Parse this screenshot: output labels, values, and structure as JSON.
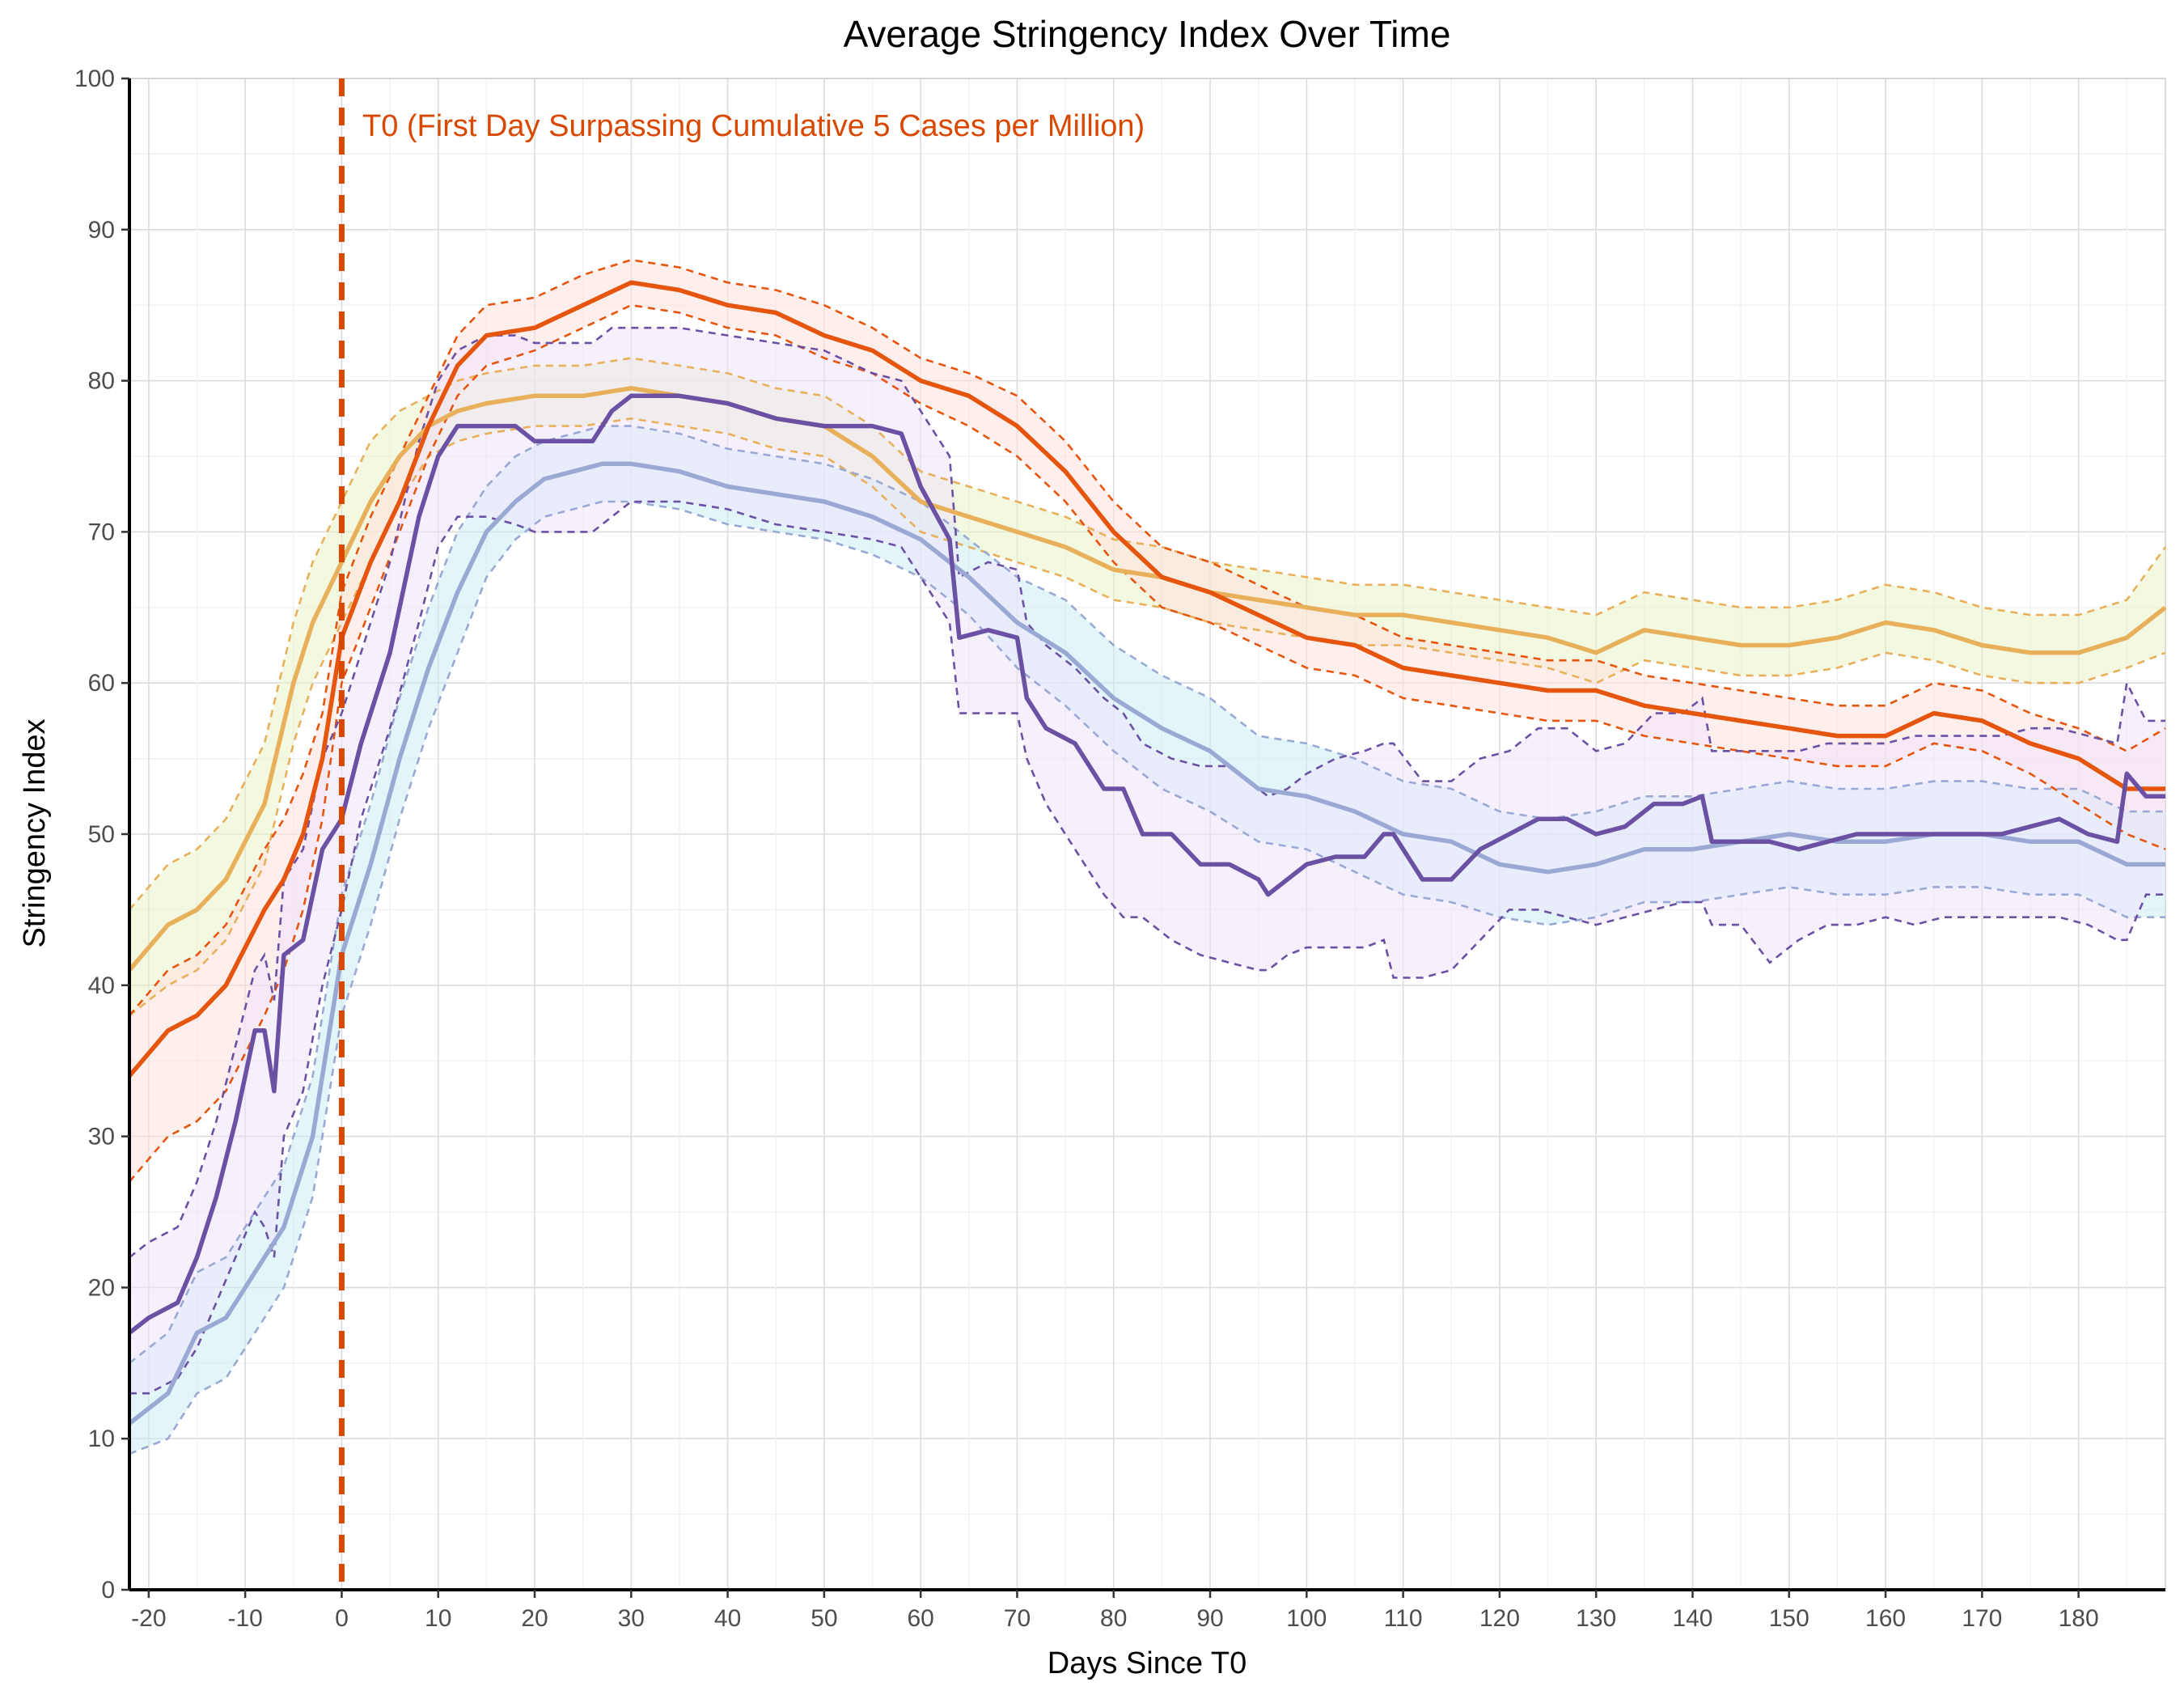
{
  "chart_data": {
    "type": "line",
    "title": "Average Stringency Index Over Time",
    "xlabel": "Days Since T0",
    "ylabel": "Stringency Index",
    "xlim": [
      -22,
      189
    ],
    "ylim": [
      0,
      100
    ],
    "x_ticks": [
      -20,
      -10,
      0,
      10,
      20,
      30,
      40,
      50,
      60,
      70,
      80,
      90,
      100,
      110,
      120,
      130,
      140,
      150,
      160,
      170,
      180
    ],
    "y_ticks": [
      0,
      10,
      20,
      30,
      40,
      50,
      60,
      70,
      80,
      90,
      100
    ],
    "grid": true,
    "legend": "none",
    "annotation": {
      "text": "T0 (First Day Surpassing Cumulative 5 Cases per Million)",
      "x": 0,
      "y": 97,
      "color": "#d94801"
    },
    "series": [
      {
        "color": "#e8b05a",
        "band_color": "#e9f2c9",
        "x": [
          -22,
          -18,
          -15,
          -12,
          -8,
          -5,
          -3,
          0,
          3,
          6,
          9,
          12,
          15,
          20,
          25,
          30,
          35,
          40,
          45,
          50,
          55,
          60,
          65,
          70,
          75,
          80,
          85,
          90,
          95,
          100,
          105,
          110,
          115,
          120,
          125,
          130,
          135,
          140,
          145,
          150,
          155,
          160,
          165,
          170,
          175,
          180,
          185,
          189
        ],
        "values": [
          41,
          44,
          45,
          47,
          52,
          60,
          64,
          68,
          72,
          75,
          77,
          78,
          78.5,
          79,
          79,
          79.5,
          79,
          78.5,
          77.5,
          77,
          75,
          72,
          71,
          70,
          69,
          67.5,
          67,
          66,
          65.5,
          65,
          64.5,
          64.5,
          64,
          63.5,
          63,
          62,
          63.5,
          63,
          62.5,
          62.5,
          63,
          64,
          63.5,
          62.5,
          62,
          62,
          63,
          65
        ],
        "lower": [
          38,
          40,
          41,
          43,
          48,
          56,
          60,
          64,
          68,
          72,
          75,
          76,
          76.5,
          77,
          77,
          77.5,
          77,
          76.5,
          75.5,
          75,
          73,
          70,
          69,
          68,
          67,
          65.5,
          65,
          64,
          63.5,
          63,
          62.5,
          62.5,
          62,
          61.5,
          61,
          60,
          61.5,
          61,
          60.5,
          60.5,
          61,
          62,
          61.5,
          60.5,
          60,
          60,
          61,
          62
        ],
        "upper": [
          45,
          48,
          49,
          51,
          56,
          64,
          68,
          72,
          76,
          78,
          79,
          80,
          80.5,
          81,
          81,
          81.5,
          81,
          80.5,
          79.5,
          79,
          77,
          74,
          73,
          72,
          71,
          69.5,
          69,
          68,
          67.5,
          67,
          66.5,
          66.5,
          66,
          65.5,
          65,
          64.5,
          66,
          65.5,
          65,
          65,
          65.5,
          66.5,
          66,
          65,
          64.5,
          64.5,
          65.5,
          69
        ]
      },
      {
        "color": "#e6550d",
        "band_color": "#fde0dd",
        "x": [
          -22,
          -18,
          -15,
          -12,
          -8,
          -6,
          -4,
          -2,
          0,
          3,
          6,
          9,
          12,
          15,
          20,
          25,
          30,
          35,
          40,
          45,
          50,
          55,
          60,
          65,
          70,
          75,
          80,
          85,
          90,
          95,
          100,
          105,
          110,
          115,
          120,
          125,
          130,
          135,
          140,
          145,
          150,
          155,
          160,
          165,
          170,
          175,
          180,
          185,
          189
        ],
        "values": [
          34,
          37,
          38,
          40,
          45,
          47,
          50,
          55,
          63,
          68,
          72,
          77,
          81,
          83,
          83.5,
          85,
          86.5,
          86,
          85,
          84.5,
          83,
          82,
          80,
          79,
          77,
          74,
          70,
          67,
          66,
          64.5,
          63,
          62.5,
          61,
          60.5,
          60,
          59.5,
          59.5,
          58.5,
          58,
          57.5,
          57,
          56.5,
          56.5,
          58,
          57.5,
          56,
          55,
          53,
          53
        ],
        "lower": [
          27,
          30,
          31,
          33,
          38,
          41,
          45,
          51,
          60,
          65,
          70,
          75,
          79,
          81,
          82,
          83.5,
          85,
          84.5,
          83.5,
          83,
          81.5,
          80.5,
          78.5,
          77,
          75,
          72,
          68,
          65,
          64,
          62.5,
          61,
          60.5,
          59,
          58.5,
          58,
          57.5,
          57.5,
          56.5,
          56,
          55.5,
          55,
          54.5,
          54.5,
          56,
          55.5,
          54,
          52,
          50,
          49
        ],
        "upper": [
          38,
          41,
          42,
          44,
          49,
          51,
          54,
          58,
          66,
          71,
          75,
          79,
          83,
          85,
          85.5,
          87,
          88,
          87.5,
          86.5,
          86,
          85,
          83.5,
          81.5,
          80.5,
          79,
          76,
          72,
          69,
          68,
          66.5,
          65,
          64.5,
          63,
          62.5,
          62,
          61.5,
          61.5,
          60.5,
          60,
          59.5,
          59,
          58.5,
          58.5,
          60,
          59.5,
          58,
          57,
          55.5,
          57
        ]
      },
      {
        "color": "#9aa8d4",
        "band_color": "#cbeff5",
        "x": [
          -22,
          -18,
          -15,
          -12,
          -9,
          -6,
          -3,
          0,
          3,
          6,
          9,
          12,
          15,
          18,
          21,
          24,
          27,
          30,
          35,
          40,
          45,
          50,
          55,
          60,
          65,
          70,
          75,
          80,
          85,
          90,
          95,
          100,
          105,
          110,
          115,
          120,
          125,
          130,
          135,
          140,
          145,
          150,
          155,
          160,
          165,
          170,
          175,
          180,
          185,
          189
        ],
        "values": [
          11,
          13,
          17,
          18,
          21,
          24,
          30,
          42,
          48,
          55,
          61,
          66,
          70,
          72,
          73.5,
          74,
          74.5,
          74.5,
          74,
          73,
          72.5,
          72,
          71,
          69.5,
          67,
          64,
          62,
          59,
          57,
          55.5,
          53,
          52.5,
          51.5,
          50,
          49.5,
          48,
          47.5,
          48,
          49,
          49,
          49.5,
          50,
          49.5,
          49.5,
          50,
          50,
          49.5,
          49.5,
          48,
          48
        ],
        "lower": [
          9,
          10,
          13,
          14,
          17,
          20,
          26,
          38,
          44,
          51,
          57,
          62,
          67,
          69.5,
          71,
          71.5,
          72,
          72,
          71.5,
          70.5,
          70,
          69.5,
          68.5,
          67,
          64.5,
          61,
          58.5,
          55.5,
          53,
          51.5,
          49.5,
          49,
          47.5,
          46,
          45.5,
          44.5,
          44,
          44.5,
          45.5,
          45.5,
          46,
          46.5,
          46,
          46,
          46.5,
          46.5,
          46,
          46,
          44.5,
          44.5
        ],
        "upper": [
          15,
          17,
          21,
          22,
          25,
          28,
          34,
          46,
          52,
          59,
          65,
          70,
          73,
          75,
          76,
          76.5,
          77,
          77,
          76.5,
          75.5,
          75,
          74.5,
          73.5,
          72,
          69.5,
          67,
          65.5,
          62.5,
          60.5,
          59,
          56.5,
          56,
          55,
          53.5,
          53,
          51.5,
          51,
          51.5,
          52.5,
          52.5,
          53,
          53.5,
          53,
          53,
          53.5,
          53.5,
          53,
          53,
          51.5,
          51.5
        ]
      },
      {
        "color": "#6a51a3",
        "band_color": "#efe3fb",
        "x": [
          -22,
          -20,
          -17,
          -15,
          -13,
          -11,
          -9,
          -8,
          -7,
          -6,
          -4,
          -2,
          0,
          2,
          5,
          8,
          10,
          12,
          15,
          18,
          20,
          23,
          26,
          28,
          30,
          35,
          40,
          45,
          50,
          55,
          58,
          60,
          63,
          64,
          67,
          70,
          71,
          73,
          76,
          79,
          81,
          83,
          86,
          89,
          92,
          95,
          96,
          98,
          100,
          103,
          106,
          108,
          109,
          112,
          115,
          118,
          121,
          124,
          127,
          130,
          133,
          136,
          139,
          141,
          142,
          145,
          148,
          151,
          154,
          157,
          160,
          163,
          166,
          169,
          172,
          175,
          178,
          181,
          184,
          185,
          187,
          189
        ],
        "values": [
          17,
          18,
          19,
          22,
          26,
          31,
          37,
          37,
          33,
          42,
          43,
          49,
          51,
          56,
          62,
          71,
          75,
          77,
          77,
          77,
          76,
          76,
          76,
          78,
          79,
          79,
          78.5,
          77.5,
          77,
          77,
          76.5,
          73,
          69.5,
          63,
          63.5,
          63,
          59,
          57,
          56,
          53,
          53,
          50,
          50,
          48,
          48,
          47,
          46,
          47,
          48,
          48.5,
          48.5,
          50,
          50,
          47,
          47,
          49,
          50,
          51,
          51,
          50,
          50.5,
          52,
          52,
          52.5,
          49.5,
          49.5,
          49.5,
          49,
          49.5,
          50,
          50,
          50,
          50,
          50,
          50,
          50.5,
          51,
          50,
          49.5,
          54,
          52.5,
          52.5
        ],
        "lower": [
          13,
          13,
          14,
          16,
          19,
          22,
          25,
          24,
          22,
          30,
          33,
          40,
          45,
          51,
          57,
          64,
          69,
          71,
          71,
          70.5,
          70,
          70,
          70,
          71,
          72,
          72,
          71.5,
          70.5,
          70,
          69.5,
          69,
          67,
          64,
          58,
          58,
          58,
          55,
          52,
          49,
          46,
          44.5,
          44.5,
          43,
          42,
          41.5,
          41,
          41,
          42,
          42.5,
          42.5,
          42.5,
          43,
          40.5,
          40.5,
          41,
          43,
          45,
          45,
          44.5,
          44,
          44.5,
          45,
          45.5,
          45.5,
          44,
          44,
          41.5,
          43,
          44,
          44,
          44.5,
          44,
          44.5,
          44.5,
          44.5,
          44.5,
          44.5,
          44,
          43,
          43,
          46,
          46
        ],
        "upper": [
          22,
          23,
          24,
          27,
          31,
          36,
          41,
          42,
          39,
          47,
          49,
          55,
          58,
          62,
          68,
          76,
          80,
          82,
          83,
          83,
          82.5,
          82.5,
          82.5,
          83.5,
          83.5,
          83.5,
          83,
          82.5,
          82,
          80.5,
          80,
          78,
          75,
          67,
          68,
          67.5,
          64,
          62.5,
          61,
          59,
          58,
          56,
          55,
          54.5,
          54.5,
          53,
          52.5,
          53,
          54,
          55,
          55.5,
          56,
          56,
          53.5,
          53.5,
          55,
          55.5,
          57,
          57,
          55.5,
          56,
          58,
          58,
          59,
          55.5,
          55.5,
          55.5,
          55.5,
          56,
          56,
          56,
          56.5,
          56.5,
          56.5,
          56.5,
          57,
          57,
          56.5,
          56,
          60,
          57.5,
          57.5
        ]
      }
    ]
  }
}
